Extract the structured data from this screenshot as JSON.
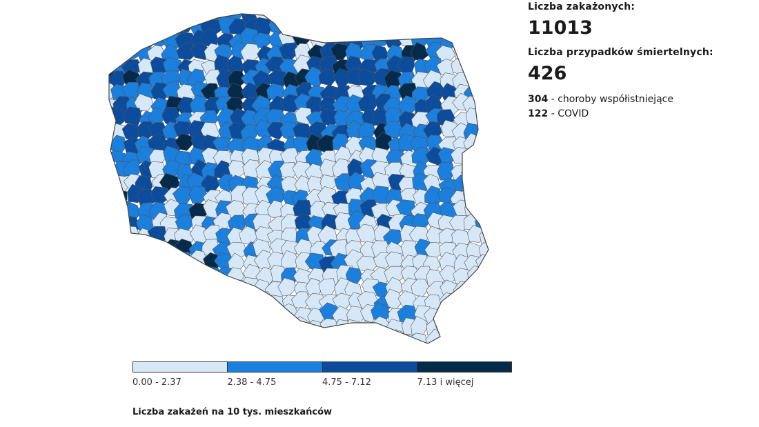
{
  "stats": {
    "infected_label": "Liczba zakażonych:",
    "infected_value": "11013",
    "deaths_label": "Liczba przypadków śmiertelnych:",
    "deaths_value": "426",
    "comorbid_count": "304",
    "comorbid_text": "- choroby współistniejące",
    "covid_count": "122",
    "covid_text": "- COVID"
  },
  "legend": {
    "title": "Liczba zakażeń na 10 tys. mieszkańców",
    "classes": [
      {
        "label": "0.00 - 2.37",
        "color": "#d6e8f8"
      },
      {
        "label": "2.38 - 4.75",
        "color": "#1a7fdd"
      },
      {
        "label": "4.75 - 7.12",
        "color": "#0b4c9c"
      },
      {
        "label": "7.13 i więcej",
        "color": "#062a4a"
      }
    ]
  },
  "map": {
    "stroke_color": "#555555"
  }
}
